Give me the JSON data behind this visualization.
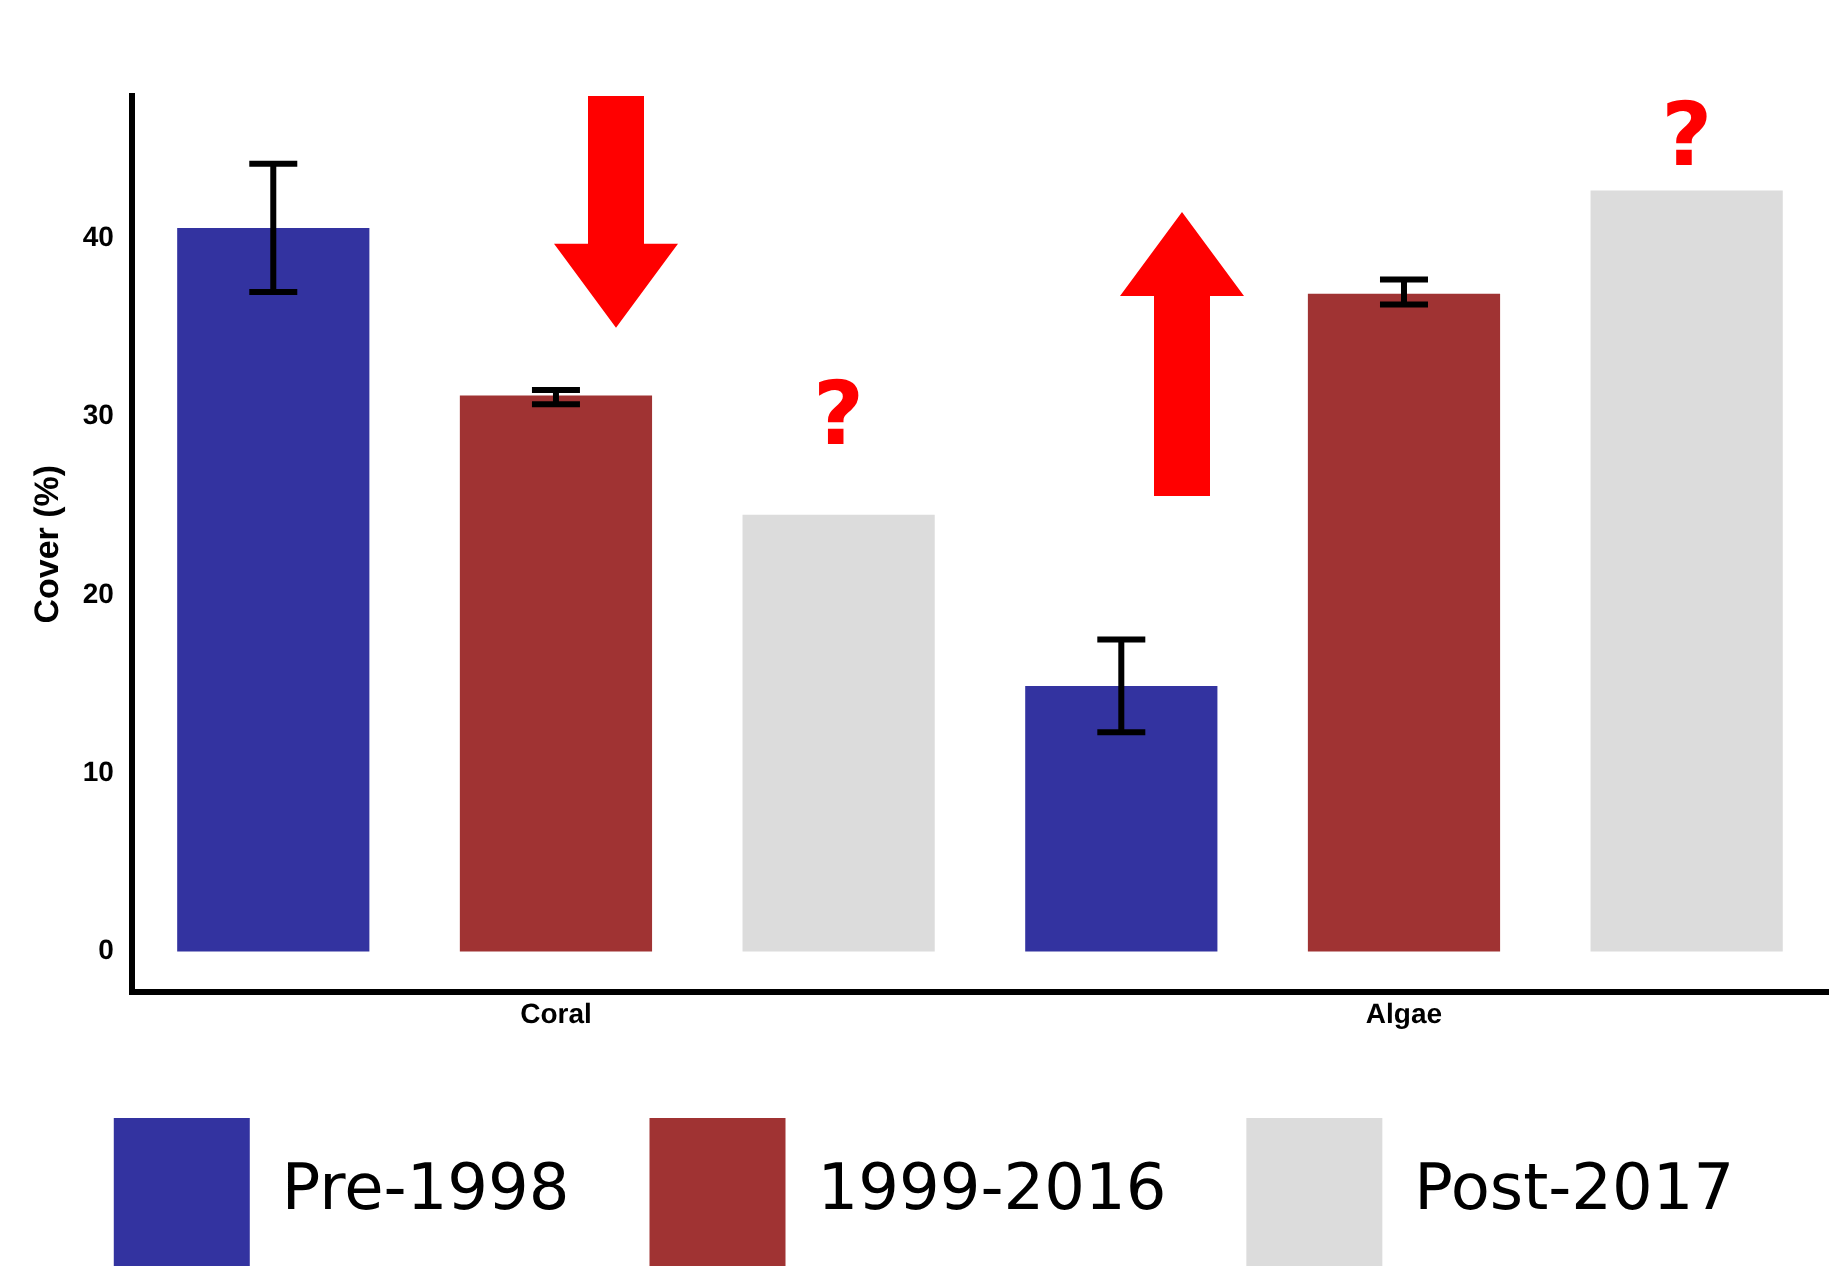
{
  "chart_data": {
    "type": "bar",
    "ylabel": "Cover (%)",
    "categories": [
      "Coral",
      "Algae"
    ],
    "series": [
      {
        "name": "Pre-1998",
        "color": "#3333a0",
        "values": [
          40.6,
          14.9
        ],
        "errors": [
          [
            37.0,
            44.2
          ],
          [
            12.3,
            17.5
          ]
        ]
      },
      {
        "name": "1999-2016",
        "color": "#a03333",
        "values": [
          31.2,
          36.9
        ],
        "errors": [
          [
            30.7,
            31.5
          ],
          [
            36.3,
            37.7
          ]
        ]
      },
      {
        "name": "Post-2017",
        "color": "#dcdcdc",
        "values": [
          24.5,
          42.7
        ]
      }
    ],
    "ylim": [
      -2.3,
      48
    ],
    "yticks": [
      0,
      10,
      20,
      30,
      40
    ],
    "grid": false,
    "legend": "bottom",
    "annotations": [
      "?",
      "?"
    ]
  }
}
